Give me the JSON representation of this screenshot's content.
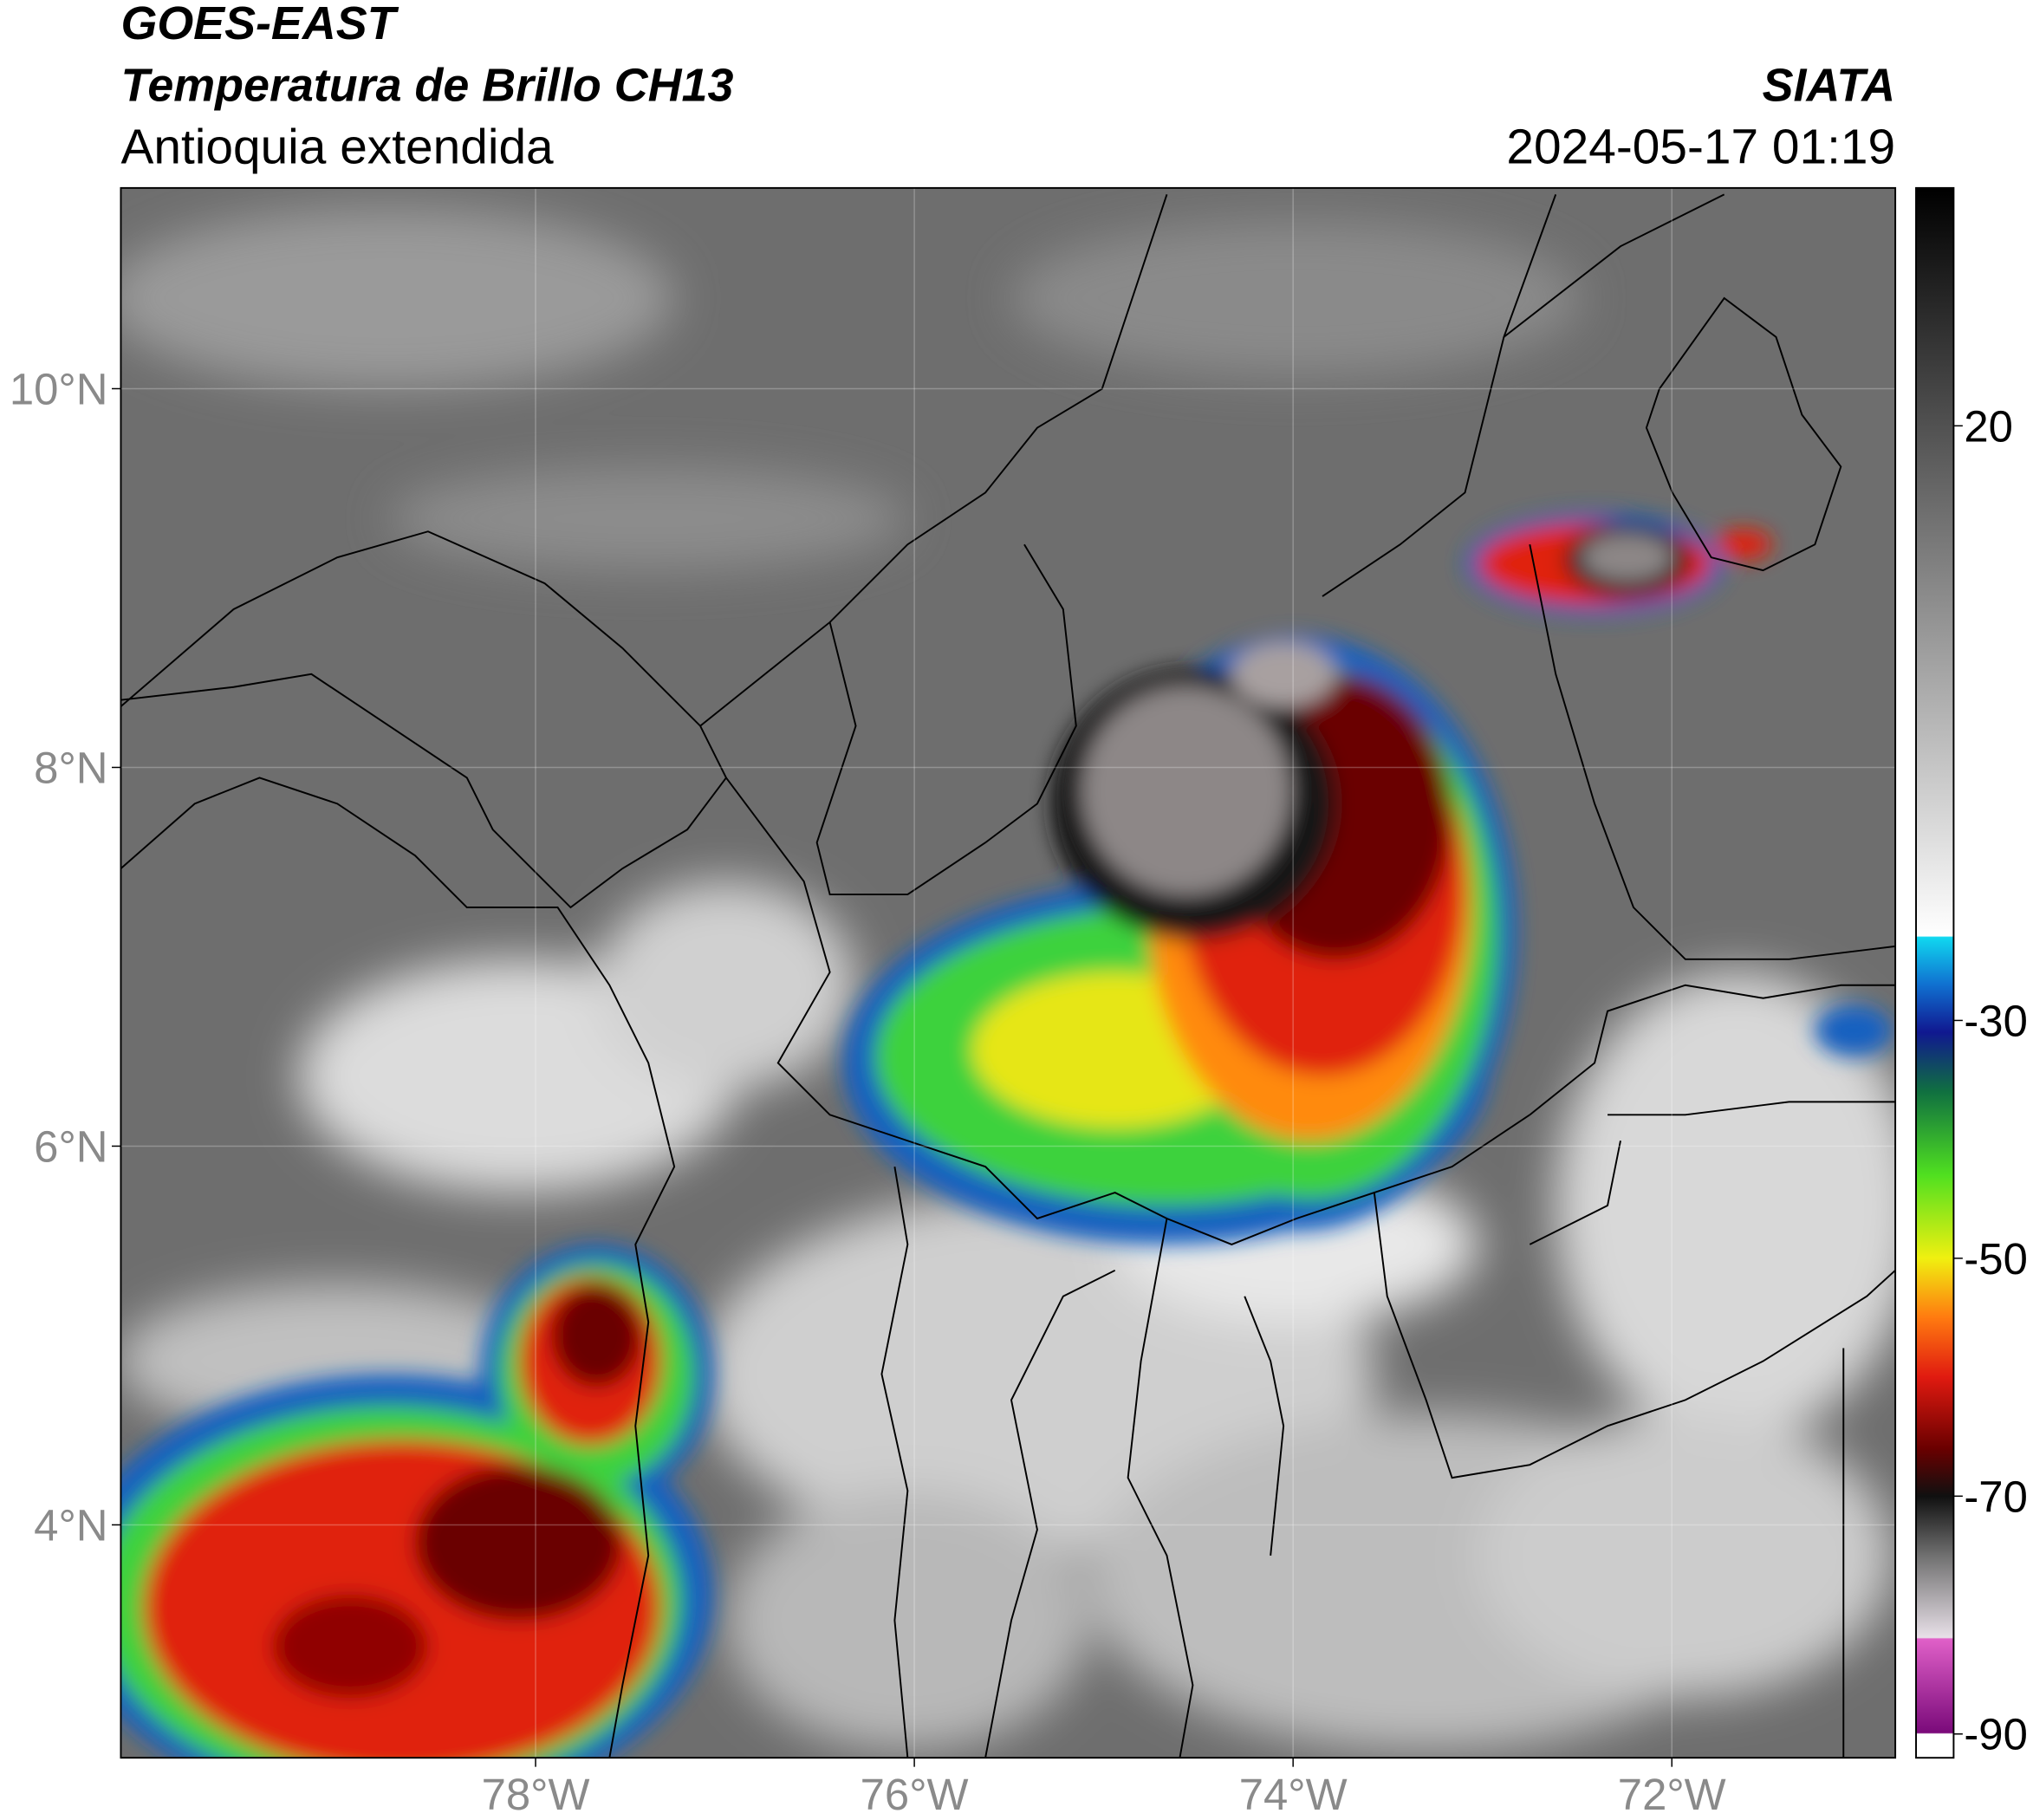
{
  "header": {
    "title1": "GOES-EAST",
    "title2": "Temperatura de Brillo CH13",
    "subtitle": "Antioquia extendida",
    "agency": "SIATA",
    "datetime": "2024-05-17 01:19"
  },
  "map": {
    "xlim": [
      -80.19,
      -70.82
    ],
    "ylim": [
      2.77,
      11.06
    ],
    "xticks": [
      {
        "value": -78,
        "label": "78°W"
      },
      {
        "value": -76,
        "label": "76°W"
      },
      {
        "value": -74,
        "label": "74°W"
      },
      {
        "value": -72,
        "label": "72°W"
      }
    ],
    "yticks": [
      {
        "value": 10,
        "label": "10°N"
      },
      {
        "value": 8,
        "label": "8°N"
      },
      {
        "value": 6,
        "label": "6°N"
      },
      {
        "value": 4,
        "label": "4°N"
      }
    ],
    "grid": true
  },
  "colorbar": {
    "clim": [
      -92,
      40
    ],
    "ticks": [
      20,
      -30,
      -50,
      -70,
      -90
    ],
    "colormap": [
      {
        "value": -92,
        "color": "#ffffff"
      },
      {
        "value": -90,
        "color": "#ffffff"
      },
      {
        "value": -89.9,
        "color": "#7a0a7a"
      },
      {
        "value": -82,
        "color": "#e060c8"
      },
      {
        "value": -81.9,
        "color": "#e8e0e8"
      },
      {
        "value": -75,
        "color": "#707070"
      },
      {
        "value": -70,
        "color": "#101010"
      },
      {
        "value": -66,
        "color": "#6a0000"
      },
      {
        "value": -60,
        "color": "#e01a10"
      },
      {
        "value": -55,
        "color": "#ff7a10"
      },
      {
        "value": -50,
        "color": "#f0f010"
      },
      {
        "value": -43,
        "color": "#50e020"
      },
      {
        "value": -36,
        "color": "#107040"
      },
      {
        "value": -31,
        "color": "#101890"
      },
      {
        "value": -27,
        "color": "#1070d0"
      },
      {
        "value": -23,
        "color": "#10d8f0"
      },
      {
        "value": -22.9,
        "color": "#ffffff"
      },
      {
        "value": 40,
        "color": "#000000"
      }
    ]
  }
}
